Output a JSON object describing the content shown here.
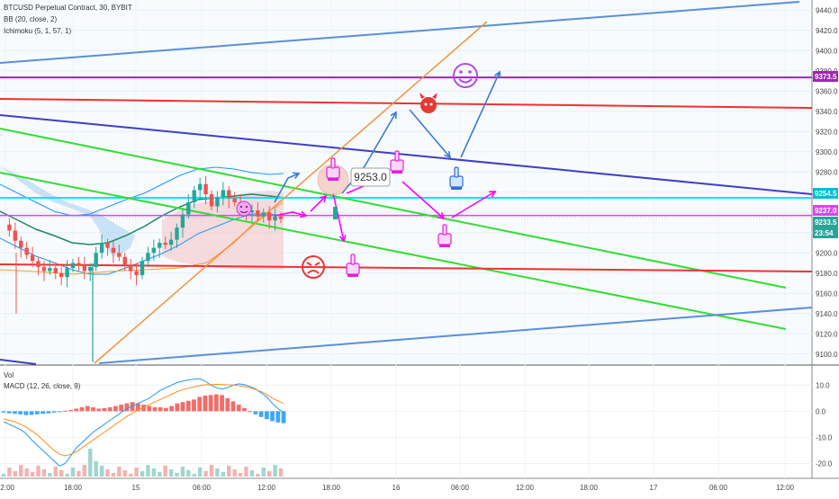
{
  "header": {
    "symbol_line": "BTCUSD Perpetual Contract, 30, BYBIT",
    "indicator_1": "BB (20, close, 2)",
    "indicator_2": "Ichimoku (5, 1, 57, 1)",
    "vol_label": "Vol",
    "macd_label": "MACD (12, 26, close, 9)"
  },
  "annotation": {
    "price_box": "9253.0"
  },
  "price_axis": {
    "ticks": [
      "9440.0",
      "9420.0",
      "9400.0",
      "9380.0",
      "9360.0",
      "9340.0",
      "9320.0",
      "9300.0",
      "9280.0",
      "9260.0",
      "9240.0",
      "9220.0",
      "9200.0",
      "9180.0",
      "9160.0",
      "9140.0",
      "9120.0",
      "9100.0"
    ],
    "labels": [
      {
        "text": "9373.5",
        "color": "#9c27b0"
      },
      {
        "text": "9254.5",
        "color": "#00bcd4"
      },
      {
        "text": "9237.0",
        "color": "#e040fb"
      },
      {
        "text": "9233.5",
        "color": "#26a69a"
      },
      {
        "text": "23:54",
        "color": "#26a69a"
      }
    ]
  },
  "macd_axis": {
    "ticks": [
      "10.0",
      "0.0",
      "-10.0",
      "-20.0"
    ]
  },
  "time_axis": {
    "ticks": [
      "12:00",
      "18:00",
      "15",
      "06:00",
      "12:00",
      "18:00",
      "16",
      "06:00",
      "12:00",
      "18:00",
      "17",
      "06:00",
      "12:00"
    ]
  },
  "colors": {
    "up": "#26a69a",
    "down": "#ef5350",
    "bb": "#2196f3",
    "purple_line": "#9c27b0",
    "cyan_line": "#00e5ff",
    "magenta_line": "#e040fb",
    "red_line": "#f23030",
    "green_line": "#33dd33",
    "blue_line": "#3f3fc0",
    "steel_line": "#5b8fd8",
    "orange_line": "#f5923e",
    "arrow_blue": "#3a7bd5",
    "arrow_magenta": "#ff00ff"
  },
  "icons": [
    "smiley-face-icon",
    "devil-face-icon",
    "angry-face-icon",
    "small-smiley-icon",
    "pointing-hand-icon"
  ],
  "chart_data": {
    "type": "candlestick",
    "symbol": "BTCUSD Perpetual Contract",
    "interval": "30",
    "exchange": "BYBIT",
    "last_price": 9233.5,
    "countdown": "23:54",
    "ylim": [
      9090,
      9450
    ],
    "horizontal_levels": [
      9373.5,
      9254.5,
      9237.0,
      9180.0
    ],
    "close_series": [
      9228,
      9222,
      9212,
      9205,
      9198,
      9192,
      9186,
      9182,
      9185,
      9180,
      9176,
      9185,
      9190,
      9188,
      9182,
      9186,
      9200,
      9210,
      9205,
      9200,
      9196,
      9188,
      9182,
      9178,
      9192,
      9200,
      9205,
      9210,
      9208,
      9213,
      9225,
      9238,
      9250,
      9262,
      9268,
      9258,
      9246,
      9255,
      9262,
      9254,
      9250,
      9246,
      9240,
      9242,
      9236,
      9240,
      9232,
      9236,
      9233.5
    ],
    "macd_ylim": [
      -25,
      17
    ],
    "macd_histogram": [
      -0.5,
      -0.8,
      -1,
      -1.2,
      -1.5,
      -1.4,
      -1.2,
      -1,
      -0.8,
      -0.5,
      -0.2,
      0.2,
      0.5,
      1,
      1.5,
      2,
      1.5,
      1,
      1.2,
      1.5,
      2,
      2.5,
      3,
      3.5,
      3,
      2.5,
      2,
      1.5,
      1.5,
      1.2,
      2,
      3,
      3.5,
      4,
      4.5,
      5.5,
      6,
      6.2,
      6.5,
      6.2,
      5,
      3.8,
      2.5,
      1.2,
      0,
      -1.2,
      -2.2,
      -3,
      -3.8,
      -4.3,
      -4.6
    ],
    "macd_line": [
      -4,
      -5,
      -6,
      -7,
      -8.5,
      -11,
      -13,
      -15,
      -17,
      -19,
      -21,
      -20,
      -17,
      -14,
      -12,
      -10,
      -8,
      -6.5,
      -5,
      -3.5,
      -2,
      -0.5,
      1,
      2,
      3,
      4,
      5,
      6.5,
      8,
      9,
      10,
      11,
      11.5,
      12,
      12.3,
      12.5,
      11.5,
      10,
      9,
      8.5,
      9,
      10,
      10.5,
      10.2,
      9.5,
      8.5,
      7,
      5.5,
      3,
      1,
      -0.5
    ],
    "signal_line": [
      -3,
      -3.5,
      -4,
      -5,
      -6,
      -7.5,
      -9,
      -11,
      -13,
      -15,
      -16.5,
      -17,
      -16.5,
      -15.5,
      -14,
      -12.5,
      -11,
      -9.5,
      -8,
      -6.5,
      -5,
      -3.5,
      -2,
      -0.8,
      0.5,
      1.5,
      2.5,
      3.5,
      4.5,
      5.5,
      6.5,
      7.5,
      8.3,
      8.8,
      9.3,
      9.8,
      10.1,
      10.2,
      10.3,
      10.2,
      10.1,
      10,
      9.8,
      9.5,
      9,
      8.3,
      7.5,
      6.5,
      5,
      4,
      3
    ]
  }
}
